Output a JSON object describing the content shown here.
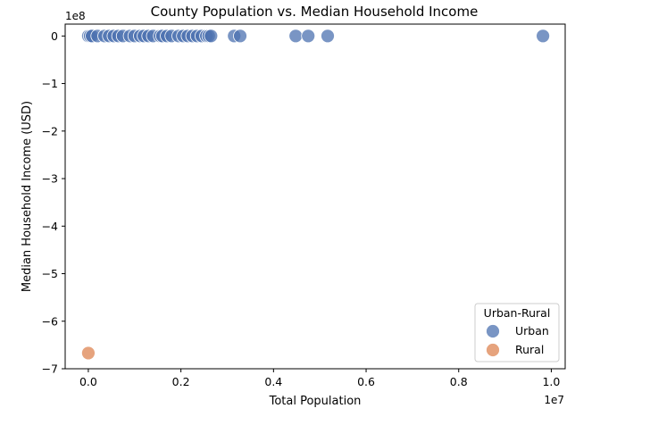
{
  "chart_data": {
    "type": "scatter",
    "title": "County Population vs. Median Household Income",
    "xlabel": "Total Population",
    "ylabel": "Median Household Income (USD)",
    "x_offset_label": "1e7",
    "y_offset_label": "1e8",
    "xlim": [
      -0.05,
      1.03
    ],
    "ylim": [
      -7,
      0.25
    ],
    "x_ticks": [
      {
        "value": 0.0,
        "label": "0.0"
      },
      {
        "value": 0.2,
        "label": "0.2"
      },
      {
        "value": 0.4,
        "label": "0.4"
      },
      {
        "value": 0.6,
        "label": "0.6"
      },
      {
        "value": 0.8,
        "label": "0.8"
      },
      {
        "value": 1.0,
        "label": "1.0"
      }
    ],
    "y_ticks": [
      {
        "value": 0,
        "label": "0"
      },
      {
        "value": -1,
        "label": "−1"
      },
      {
        "value": -2,
        "label": "−2"
      },
      {
        "value": -3,
        "label": "−3"
      },
      {
        "value": -4,
        "label": "−4"
      },
      {
        "value": -5,
        "label": "−5"
      },
      {
        "value": -6,
        "label": "−6"
      },
      {
        "value": -7,
        "label": "−7"
      }
    ],
    "grid": false,
    "legend": {
      "title": "Urban-Rural",
      "placement": "lower-right"
    },
    "series": [
      {
        "name": "Urban",
        "color": "#4c72b0",
        "points": [
          {
            "x": 0.0,
            "y": 0
          },
          {
            "x": 0.004,
            "y": 0
          },
          {
            "x": 0.008,
            "y": 0
          },
          {
            "x": 0.02,
            "y": 0
          },
          {
            "x": 0.035,
            "y": 0
          },
          {
            "x": 0.045,
            "y": 0
          },
          {
            "x": 0.055,
            "y": 0
          },
          {
            "x": 0.065,
            "y": 0
          },
          {
            "x": 0.075,
            "y": 0
          },
          {
            "x": 0.09,
            "y": 0
          },
          {
            "x": 0.1,
            "y": 0
          },
          {
            "x": 0.112,
            "y": 0
          },
          {
            "x": 0.12,
            "y": 0
          },
          {
            "x": 0.13,
            "y": 0
          },
          {
            "x": 0.14,
            "y": 0
          },
          {
            "x": 0.155,
            "y": 0
          },
          {
            "x": 0.16,
            "y": 0
          },
          {
            "x": 0.17,
            "y": 0
          },
          {
            "x": 0.18,
            "y": 0
          },
          {
            "x": 0.195,
            "y": 0
          },
          {
            "x": 0.205,
            "y": 0
          },
          {
            "x": 0.215,
            "y": 0
          },
          {
            "x": 0.225,
            "y": 0
          },
          {
            "x": 0.235,
            "y": 0
          },
          {
            "x": 0.245,
            "y": 0
          },
          {
            "x": 0.255,
            "y": 0
          },
          {
            "x": 0.26,
            "y": 0
          },
          {
            "x": 0.265,
            "y": 0
          },
          {
            "x": 0.315,
            "y": 0
          },
          {
            "x": 0.328,
            "y": 0
          },
          {
            "x": 0.448,
            "y": 0
          },
          {
            "x": 0.475,
            "y": 0
          },
          {
            "x": 0.517,
            "y": 0
          },
          {
            "x": 0.982,
            "y": 0
          }
        ]
      },
      {
        "name": "Rural",
        "color": "#dd8452",
        "points": [
          {
            "x": 0.0,
            "y": -6.67
          }
        ]
      }
    ]
  }
}
